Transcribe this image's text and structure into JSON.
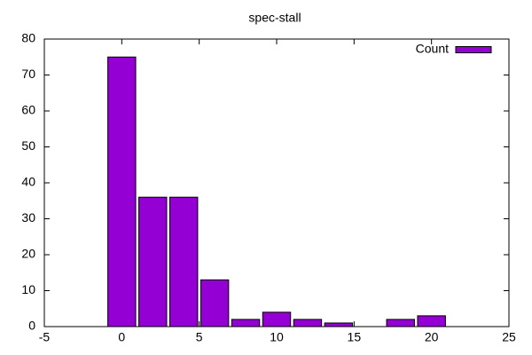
{
  "chart_data": {
    "type": "bar",
    "title": "spec-stall",
    "x": [
      0,
      2,
      4,
      6,
      8,
      10,
      12,
      14,
      18,
      20
    ],
    "series": [
      {
        "name": "Count",
        "color": "#9400d3",
        "values": [
          75,
          36,
          36,
          13,
          2,
          4,
          2,
          1,
          2,
          3
        ]
      }
    ],
    "xlim": [
      -5,
      25
    ],
    "xticks": [
      -5,
      0,
      5,
      10,
      15,
      20,
      25
    ],
    "ylim": [
      0,
      80
    ],
    "yticks": [
      0,
      10,
      20,
      30,
      40,
      50,
      60,
      70,
      80
    ],
    "legend": "top-right"
  }
}
